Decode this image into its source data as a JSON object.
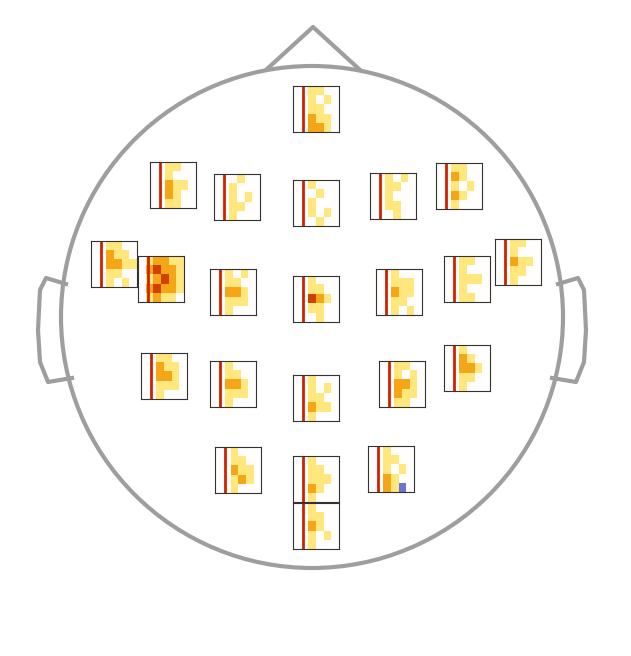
{
  "chart_data": {
    "type": "heatmap",
    "tick_labels": false,
    "color_range": [
      -3,
      3
    ],
    "panels": [
      {
        "cells": [
          [
            0,
            0,
            1,
            1,
            0,
            0
          ],
          [
            0,
            0,
            1,
            0,
            1,
            0
          ],
          [
            0,
            0,
            1,
            1,
            0,
            0
          ],
          [
            0,
            0,
            2,
            1,
            1,
            0
          ],
          [
            0,
            0,
            2,
            2,
            1,
            0
          ]
        ]
      },
      {
        "cells": [
          [
            0,
            0,
            1,
            1,
            0,
            0
          ],
          [
            0,
            0,
            1,
            0,
            0,
            0
          ],
          [
            0,
            0,
            2,
            1,
            1,
            0
          ],
          [
            0,
            0,
            2,
            1,
            0,
            0
          ],
          [
            0,
            0,
            1,
            1,
            0,
            0
          ]
        ]
      },
      {
        "cells": [
          [
            0,
            0,
            0,
            1,
            0,
            0
          ],
          [
            0,
            0,
            1,
            0,
            0,
            0
          ],
          [
            0,
            0,
            1,
            0,
            1,
            0
          ],
          [
            0,
            0,
            1,
            1,
            0,
            0
          ],
          [
            0,
            0,
            1,
            0,
            0,
            0
          ]
        ]
      },
      {
        "cells": [
          [
            0,
            0,
            1,
            0,
            0,
            0
          ],
          [
            0,
            0,
            0,
            1,
            0,
            0
          ],
          [
            0,
            0,
            1,
            0,
            0,
            0
          ],
          [
            0,
            0,
            1,
            0,
            1,
            0
          ],
          [
            0,
            0,
            0,
            1,
            0,
            0
          ]
        ]
      },
      {
        "cells": [
          [
            0,
            0,
            1,
            0,
            1,
            0
          ],
          [
            0,
            0,
            1,
            1,
            0,
            0
          ],
          [
            0,
            0,
            1,
            0,
            0,
            0
          ],
          [
            0,
            0,
            1,
            1,
            0,
            0
          ],
          [
            0,
            0,
            0,
            1,
            0,
            0
          ]
        ]
      },
      {
        "cells": [
          [
            0,
            0,
            1,
            1,
            0,
            0
          ],
          [
            0,
            0,
            2,
            1,
            0,
            0
          ],
          [
            0,
            0,
            1,
            0,
            1,
            0
          ],
          [
            0,
            0,
            2,
            1,
            0,
            0
          ],
          [
            0,
            0,
            1,
            0,
            0,
            0
          ]
        ]
      },
      {
        "cells": [
          [
            0,
            0,
            1,
            1,
            0,
            0
          ],
          [
            0,
            0,
            2,
            1,
            1,
            0
          ],
          [
            0,
            0,
            2,
            2,
            1,
            1
          ],
          [
            0,
            0,
            1,
            1,
            0,
            0
          ],
          [
            0,
            0,
            1,
            0,
            1,
            0
          ]
        ]
      },
      {
        "cells": [
          [
            0,
            1,
            2,
            2,
            1,
            1
          ],
          [
            0,
            2,
            3,
            2,
            2,
            1
          ],
          [
            0,
            1,
            2,
            3,
            2,
            1
          ],
          [
            0,
            2,
            3,
            2,
            2,
            1
          ],
          [
            0,
            1,
            2,
            1,
            1,
            0
          ]
        ]
      },
      {
        "cells": [
          [
            0,
            0,
            1,
            0,
            1,
            0
          ],
          [
            0,
            0,
            1,
            1,
            0,
            0
          ],
          [
            0,
            0,
            2,
            2,
            1,
            0
          ],
          [
            0,
            0,
            1,
            1,
            1,
            0
          ],
          [
            0,
            0,
            1,
            0,
            0,
            0
          ]
        ]
      },
      {
        "cells": [
          [
            0,
            0,
            1,
            0,
            0,
            0
          ],
          [
            0,
            0,
            1,
            1,
            0,
            0
          ],
          [
            0,
            0,
            3,
            2,
            1,
            0
          ],
          [
            0,
            0,
            1,
            1,
            0,
            0
          ],
          [
            0,
            0,
            0,
            1,
            0,
            0
          ]
        ]
      },
      {
        "cells": [
          [
            0,
            0,
            1,
            0,
            0,
            0
          ],
          [
            0,
            0,
            1,
            1,
            1,
            0
          ],
          [
            0,
            0,
            2,
            1,
            1,
            0
          ],
          [
            0,
            0,
            1,
            1,
            0,
            0
          ],
          [
            0,
            0,
            1,
            0,
            1,
            0
          ]
        ]
      },
      {
        "cells": [
          [
            0,
            0,
            1,
            1,
            0,
            0
          ],
          [
            0,
            0,
            1,
            0,
            0,
            0
          ],
          [
            0,
            0,
            1,
            1,
            1,
            0
          ],
          [
            0,
            0,
            1,
            0,
            0,
            0
          ],
          [
            0,
            0,
            1,
            1,
            0,
            0
          ]
        ]
      },
      {
        "cells": [
          [
            0,
            0,
            1,
            1,
            0,
            0
          ],
          [
            0,
            0,
            1,
            0,
            0,
            0
          ],
          [
            0,
            0,
            2,
            1,
            1,
            0
          ],
          [
            0,
            0,
            1,
            1,
            0,
            0
          ],
          [
            0,
            0,
            1,
            0,
            0,
            0
          ]
        ]
      },
      {
        "cells": [
          [
            0,
            0,
            1,
            1,
            0,
            0
          ],
          [
            0,
            0,
            2,
            1,
            1,
            0
          ],
          [
            0,
            0,
            2,
            2,
            1,
            0
          ],
          [
            0,
            0,
            1,
            1,
            1,
            0
          ],
          [
            0,
            0,
            1,
            0,
            0,
            0
          ]
        ]
      },
      {
        "cells": [
          [
            0,
            0,
            1,
            0,
            0,
            0
          ],
          [
            0,
            0,
            1,
            1,
            0,
            0
          ],
          [
            0,
            0,
            2,
            2,
            1,
            0
          ],
          [
            0,
            0,
            1,
            1,
            1,
            0
          ],
          [
            0,
            0,
            1,
            0,
            0,
            0
          ]
        ]
      },
      {
        "cells": [
          [
            0,
            0,
            1,
            0,
            0,
            0
          ],
          [
            0,
            0,
            1,
            0,
            1,
            0
          ],
          [
            0,
            0,
            1,
            1,
            0,
            0
          ],
          [
            0,
            0,
            2,
            1,
            1,
            0
          ],
          [
            0,
            0,
            1,
            0,
            0,
            0
          ]
        ]
      },
      {
        "cells": [
          [
            0,
            0,
            1,
            1,
            0,
            0
          ],
          [
            0,
            0,
            1,
            0,
            1,
            0
          ],
          [
            0,
            0,
            2,
            2,
            1,
            0
          ],
          [
            0,
            0,
            2,
            1,
            1,
            0
          ],
          [
            0,
            0,
            1,
            1,
            0,
            0
          ]
        ]
      },
      {
        "cells": [
          [
            0,
            0,
            1,
            0,
            0,
            0
          ],
          [
            0,
            0,
            2,
            1,
            0,
            0
          ],
          [
            0,
            0,
            2,
            2,
            1,
            0
          ],
          [
            0,
            0,
            1,
            1,
            0,
            0
          ],
          [
            0,
            0,
            1,
            0,
            0,
            0
          ]
        ]
      },
      {
        "cells": [
          [
            0,
            0,
            1,
            0,
            0,
            0
          ],
          [
            0,
            0,
            1,
            1,
            0,
            0
          ],
          [
            0,
            0,
            2,
            1,
            1,
            0
          ],
          [
            0,
            0,
            1,
            2,
            1,
            0
          ],
          [
            0,
            0,
            1,
            0,
            0,
            0
          ]
        ]
      },
      {
        "cells": [
          [
            0,
            0,
            1,
            0,
            0,
            0
          ],
          [
            0,
            0,
            1,
            1,
            0,
            0
          ],
          [
            0,
            0,
            1,
            1,
            1,
            0
          ],
          [
            0,
            0,
            2,
            1,
            0,
            0
          ],
          [
            0,
            0,
            1,
            0,
            0,
            0
          ]
        ]
      },
      {
        "cells": [
          [
            0,
            0,
            1,
            0,
            0,
            0
          ],
          [
            0,
            0,
            1,
            1,
            0,
            0
          ],
          [
            0,
            0,
            1,
            0,
            1,
            0
          ],
          [
            0,
            0,
            2,
            1,
            0,
            0
          ],
          [
            0,
            0,
            2,
            1,
            -2,
            0
          ]
        ]
      },
      {
        "cells": [
          [
            0,
            0,
            1,
            0,
            0,
            0
          ],
          [
            0,
            0,
            1,
            1,
            0,
            0
          ],
          [
            0,
            0,
            2,
            1,
            0,
            0
          ],
          [
            0,
            0,
            1,
            0,
            1,
            0
          ],
          [
            0,
            0,
            1,
            0,
            0,
            0
          ]
        ]
      }
    ]
  }
}
